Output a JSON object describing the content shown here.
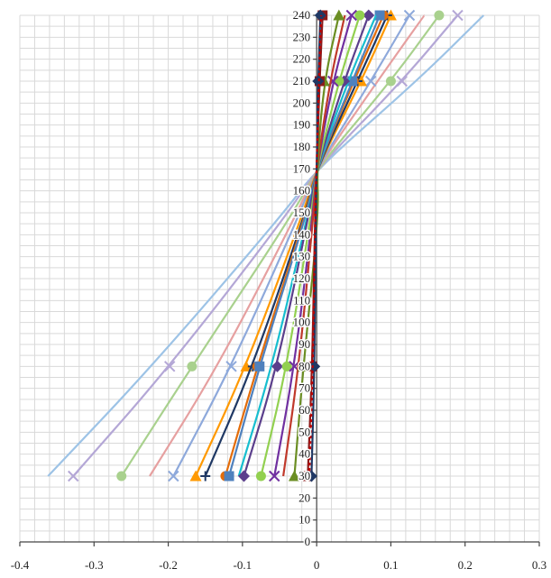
{
  "chart_data": {
    "type": "line",
    "title": "",
    "xlabel": "",
    "ylabel": "",
    "xlim": [
      -0.4,
      0.3
    ],
    "ylim": [
      0,
      240
    ],
    "grid": true,
    "legend": "none",
    "x_ticks": [
      -0.4,
      -0.3,
      -0.2,
      -0.1,
      0,
      0.1,
      0.2,
      0.3
    ],
    "x_tick_labels": [
      "-0.4",
      "-0.3",
      "-0.2",
      "-0.1",
      "0",
      "0.1",
      "0.2",
      "0.3"
    ],
    "y_ticks": [
      0,
      10,
      20,
      30,
      40,
      50,
      60,
      70,
      80,
      90,
      100,
      110,
      120,
      130,
      140,
      150,
      160,
      170,
      180,
      190,
      200,
      210,
      220,
      230,
      240
    ],
    "y_tick_labels": [
      "0",
      "10",
      "20",
      "30",
      "40",
      "50",
      "60",
      "70",
      "80",
      "90",
      "100",
      "110",
      "120",
      "130",
      "140",
      "150",
      "160",
      "170",
      "180",
      "190",
      "200",
      "210",
      "220",
      "230",
      "240"
    ],
    "y": [
      30,
      80,
      150,
      170,
      210,
      240
    ],
    "series": [
      {
        "color": "#c00000",
        "marker": "none",
        "dash": "3,3",
        "values": [
          -0.01,
          -0.005,
          -0.002,
          0,
          0.003,
          0.006
        ]
      },
      {
        "color": "#203864",
        "marker": "diamond",
        "values": [
          -0.007,
          -0.003,
          -0.001,
          0,
          0.002,
          0.005
        ]
      },
      {
        "color": "#8b1a1a",
        "marker": "square",
        "values": [
          -0.012,
          -0.006,
          -0.002,
          0,
          0.004,
          0.008
        ]
      },
      {
        "color": "#6b8e23",
        "marker": "triangle",
        "values": [
          -0.03,
          -0.018,
          0.003,
          0,
          0.01,
          0.03
        ]
      },
      {
        "color": "#c0392b",
        "marker": "none",
        "values": [
          -0.045,
          -0.024,
          -0.004,
          0,
          0.018,
          0.038
        ]
      },
      {
        "color": "#7030a0",
        "marker": "x",
        "values": [
          -0.057,
          -0.03,
          -0.005,
          0,
          0.022,
          0.047
        ]
      },
      {
        "color": "#92d050",
        "marker": "circle",
        "values": [
          -0.075,
          -0.04,
          -0.007,
          0,
          0.03,
          0.058
        ]
      },
      {
        "color": "#5b3f8c",
        "marker": "diamond",
        "values": [
          -0.098,
          -0.053,
          -0.01,
          0,
          0.037,
          0.07
        ]
      },
      {
        "color": "#17becf",
        "marker": "none",
        "values": [
          -0.105,
          -0.06,
          -0.011,
          0,
          0.042,
          0.08
        ]
      },
      {
        "color": "#4f81bd",
        "marker": "square",
        "values": [
          -0.118,
          -0.077,
          -0.013,
          0,
          0.048,
          0.085
        ]
      },
      {
        "color": "#e36c09",
        "marker": "circle",
        "values": [
          -0.123,
          -0.08,
          -0.014,
          0,
          0.05,
          0.09
        ]
      },
      {
        "color": "#1f3864",
        "marker": "plus",
        "values": [
          -0.15,
          -0.086,
          -0.015,
          0,
          0.055,
          0.095
        ]
      },
      {
        "color": "#ff9900",
        "marker": "triangle",
        "values": [
          -0.163,
          -0.095,
          -0.018,
          0,
          0.06,
          0.1
        ]
      },
      {
        "color": "#8ea9db",
        "marker": "x",
        "values": [
          -0.193,
          -0.115,
          -0.022,
          0,
          0.073,
          0.125
        ]
      },
      {
        "color": "#e6a0a0",
        "marker": "none",
        "values": [
          -0.225,
          -0.133,
          -0.026,
          0,
          0.082,
          0.145
        ]
      },
      {
        "color": "#a9d18e",
        "marker": "circle",
        "values": [
          -0.263,
          -0.168,
          -0.031,
          0,
          0.1,
          0.165
        ]
      },
      {
        "color": "#b4a7d6",
        "marker": "x",
        "values": [
          -0.328,
          -0.198,
          -0.038,
          0,
          0.115,
          0.19
        ]
      },
      {
        "color": "#9dc3e6",
        "marker": "none",
        "values": [
          -0.362,
          -0.222,
          -0.044,
          0,
          0.135,
          0.225
        ]
      }
    ]
  }
}
